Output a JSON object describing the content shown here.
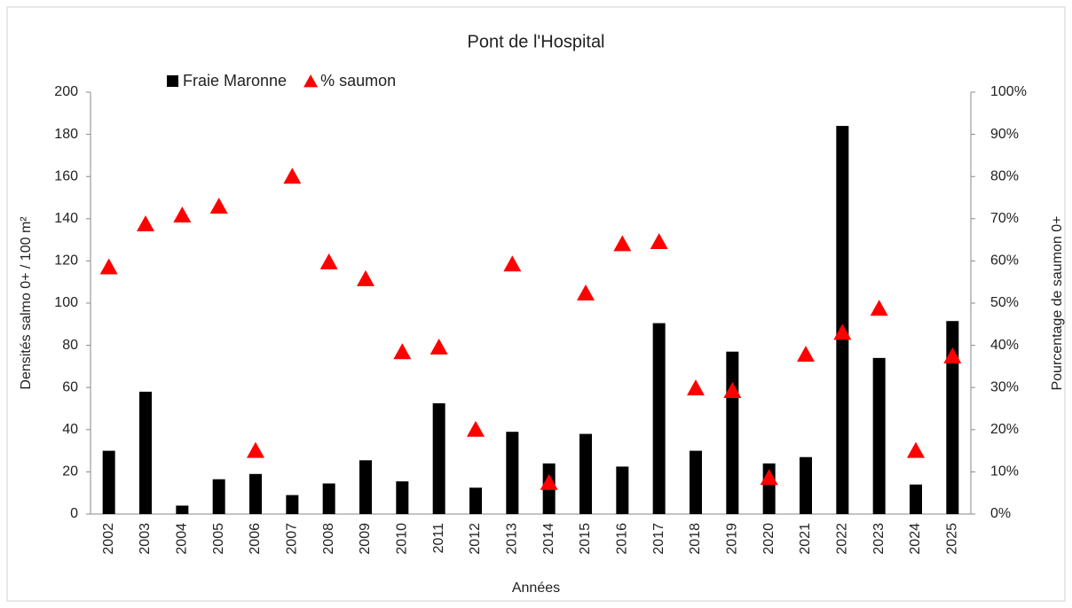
{
  "chart_data": {
    "type": "combo",
    "title": "Pont de l'Hospital",
    "x_label": "Années",
    "y_label": "Densités salmo 0+ / 100 m²",
    "y2_label": "Pourcentage de saumon 0+",
    "categories": [
      "2002",
      "2003",
      "2004",
      "2005",
      "2006",
      "2007",
      "2008",
      "2009",
      "2010",
      "2011",
      "2012",
      "2013",
      "2014",
      "2015",
      "2016",
      "2017",
      "2018",
      "2019",
      "2020",
      "2021",
      "2022",
      "2023",
      "2024",
      "2025"
    ],
    "series": [
      {
        "name": "Fraie Maronne",
        "type": "bar",
        "color": "#000000",
        "values": [
          30,
          58,
          4,
          16.5,
          19,
          9,
          14.5,
          25.5,
          15.5,
          52.5,
          12.5,
          39,
          24,
          38,
          22.5,
          90.5,
          30,
          77,
          24,
          27,
          184,
          74,
          14,
          91.5
        ]
      },
      {
        "name": "% saumon",
        "type": "scatter",
        "marker": "triangle",
        "color": "#ff0000",
        "axis": "y2",
        "values": [
          58.5,
          68.7,
          70.8,
          72.9,
          15,
          80,
          59.7,
          55.7,
          38.4,
          39.5,
          20,
          59.2,
          7.4,
          52.3,
          64,
          64.5,
          29.8,
          29.2,
          8.6,
          37.8,
          43,
          48.7,
          15,
          37.4
        ]
      }
    ],
    "ylim": [
      0,
      200
    ],
    "yticks": [
      0,
      20,
      40,
      60,
      80,
      100,
      120,
      140,
      160,
      180,
      200
    ],
    "y2lim": [
      0,
      100
    ],
    "y2ticks": [
      {
        "value": 0,
        "label": "0%"
      },
      {
        "value": 10,
        "label": "10%"
      },
      {
        "value": 20,
        "label": "20%"
      },
      {
        "value": 30,
        "label": "30%"
      },
      {
        "value": 40,
        "label": "40%"
      },
      {
        "value": 50,
        "label": "50%"
      },
      {
        "value": 60,
        "label": "60%"
      },
      {
        "value": 70,
        "label": "70%"
      },
      {
        "value": 80,
        "label": "80%"
      },
      {
        "value": 90,
        "label": "90%"
      },
      {
        "value": 100,
        "label": "100%"
      }
    ],
    "legend": "top"
  }
}
